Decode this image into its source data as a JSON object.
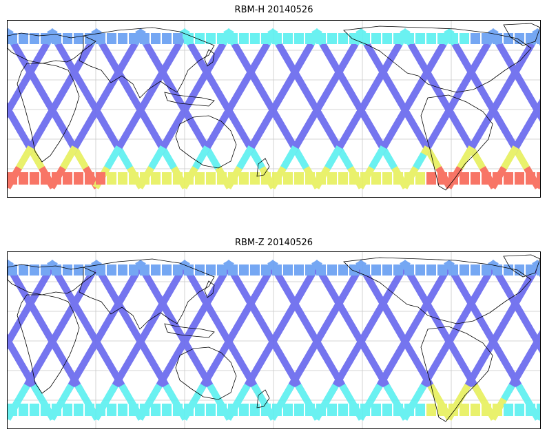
{
  "panels": [
    {
      "title": "RBM-H 20140526",
      "variant": "H"
    },
    {
      "title": "RBM-Z 20140526",
      "variant": "Z"
    }
  ],
  "colors": {
    "track_low": "#6a6aee",
    "track_mid_low": "#6aa0f2",
    "track_mid": "#5ef0f0",
    "track_mid_high": "#e8f060",
    "track_high": "#f86a5a",
    "coastline": "#000000",
    "grid": "#c8c8c8",
    "background": "#ffffff"
  }
}
